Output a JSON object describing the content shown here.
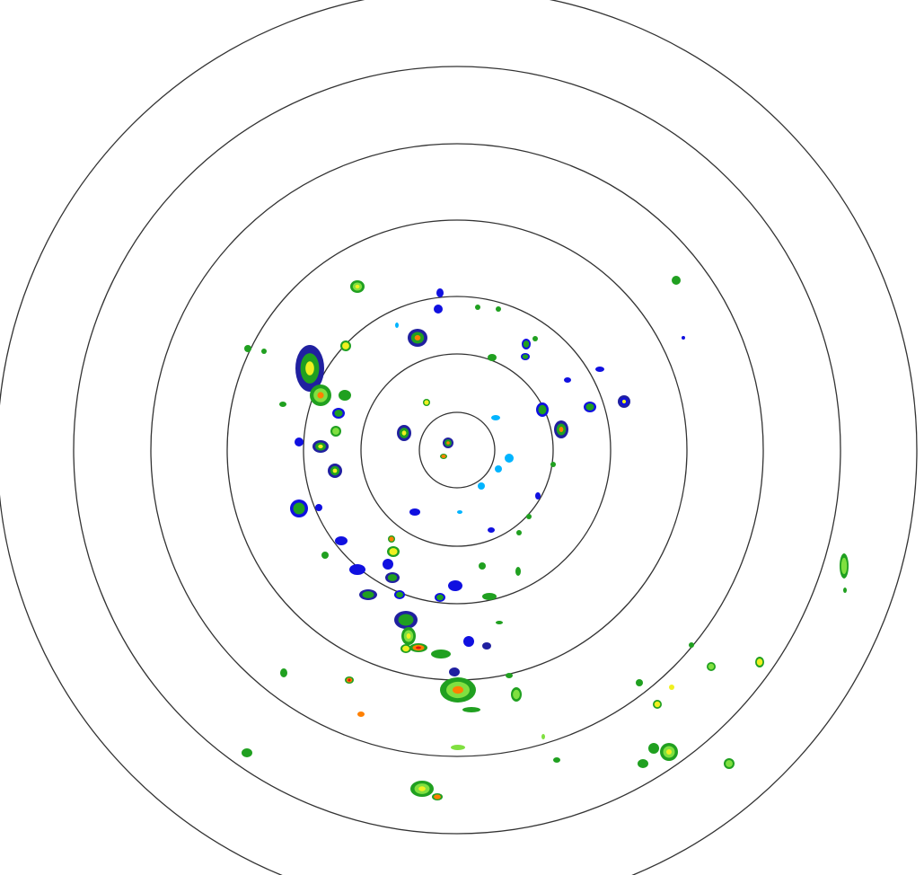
{
  "radar": {
    "ring_color": "#333333",
    "background": "#ffffff",
    "reflectivity_colors": {
      "light_cyan": "#9ff3ff",
      "cyan": "#00b4ff",
      "blue": "#1010e0",
      "dark_blue": "#2020a0",
      "green": "#20a020",
      "light_green": "#80e040",
      "yellow": "#f0f020",
      "orange": "#ff8000",
      "red": "#e01010"
    }
  }
}
